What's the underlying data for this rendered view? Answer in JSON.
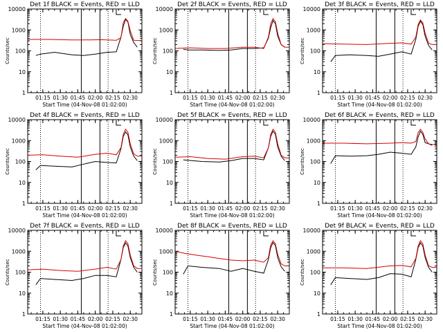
{
  "page": {
    "colors": {
      "background": "#ffffff",
      "events": "#000000",
      "lld": "#d40000",
      "axes": "#000000"
    }
  },
  "chart_data": [
    {
      "type": "line",
      "title": "Det 1f BLACK = Events, RED = LLD",
      "xlabel": "Start Time (04-Nov-08 01:02:00)",
      "ylabel": "Counts/sec",
      "x_ticks": [
        "01:15",
        "01:30",
        "01:45",
        "02:00",
        "02:15",
        "02:30"
      ],
      "y_ticks": [
        "1",
        "10",
        "100",
        "1000",
        "10000"
      ],
      "y_scale": "log",
      "ylim": [
        1,
        10000
      ],
      "xlim": [
        "01:02",
        "02:40"
      ],
      "series": [
        {
          "name": "Events",
          "color": "#000000",
          "x": [
            "01:09",
            "01:13",
            "01:25",
            "01:40",
            "01:50",
            "02:00",
            "02:10",
            "02:18",
            "02:22",
            "02:24",
            "02:26",
            "02:28",
            "02:30",
            "02:33",
            "02:36"
          ],
          "y": [
            60,
            70,
            85,
            65,
            60,
            70,
            85,
            90,
            450,
            1500,
            3200,
            2400,
            600,
            250,
            150
          ]
        },
        {
          "name": "LLD",
          "color": "#d40000",
          "x": [
            "01:02",
            "01:20",
            "01:40",
            "01:50",
            "02:05",
            "02:18",
            "02:22",
            "02:24",
            "02:26",
            "02:28",
            "02:30",
            "02:33",
            "02:36",
            "02:40"
          ],
          "y": [
            350,
            350,
            330,
            330,
            340,
            320,
            420,
            2200,
            3500,
            2600,
            900,
            320,
            310,
            310
          ]
        }
      ],
      "markers": {
        "dotted": [
          "01:13",
          "02:11"
        ],
        "solid": [
          "01:48",
          "02:04"
        ],
        "bracket": "02:18"
      }
    },
    {
      "type": "line",
      "title": "Det 2f BLACK = Events, RED = LLD",
      "xlabel": "Start Time (04-Nov-08 01:02:00)",
      "ylabel": "Counts/sec",
      "x_ticks": [
        "01:15",
        "01:30",
        "01:45",
        "02:00",
        "02:15",
        "02:30"
      ],
      "y_ticks": [
        "1",
        "10",
        "100",
        "1000",
        "10000"
      ],
      "y_scale": "log",
      "ylim": [
        1,
        10000
      ],
      "xlim": [
        "01:02",
        "02:40"
      ],
      "series": [
        {
          "name": "Events",
          "color": "#000000",
          "x": [
            "01:09",
            "01:13",
            "01:25",
            "01:40",
            "01:50",
            "02:00",
            "02:10",
            "02:18",
            "02:22",
            "02:24",
            "02:26",
            "02:28",
            "02:30",
            "02:33",
            "02:36"
          ],
          "y": [
            120,
            110,
            110,
            105,
            110,
            130,
            130,
            140,
            400,
            1300,
            2800,
            2000,
            500,
            200,
            150
          ]
        },
        {
          "name": "LLD",
          "color": "#d40000",
          "x": [
            "01:02",
            "01:15",
            "01:30",
            "01:45",
            "02:00",
            "02:10",
            "02:18",
            "02:22",
            "02:24",
            "02:26",
            "02:28",
            "02:30",
            "02:33",
            "02:36",
            "02:40"
          ],
          "y": [
            130,
            140,
            130,
            130,
            150,
            150,
            130,
            450,
            2000,
            3500,
            2500,
            700,
            200,
            150,
            150
          ]
        }
      ],
      "markers": {
        "dotted": [
          "01:13",
          "02:11"
        ],
        "solid": [
          "01:48",
          "02:04"
        ],
        "bracket": "02:18"
      }
    },
    {
      "type": "line",
      "title": "Det 3f BLACK = Events, RED = LLD",
      "xlabel": "Start Time (04-Nov-08 01:02:00)",
      "ylabel": "Counts/sec",
      "x_ticks": [
        "01:15",
        "01:30",
        "01:45",
        "02:00",
        "02:15",
        "02:30"
      ],
      "y_ticks": [
        "1",
        "10",
        "100",
        "1000",
        "10000"
      ],
      "y_scale": "log",
      "ylim": [
        1,
        10000
      ],
      "xlim": [
        "01:02",
        "02:40"
      ],
      "series": [
        {
          "name": "Events",
          "color": "#000000",
          "x": [
            "01:09",
            "01:13",
            "01:25",
            "01:40",
            "01:50",
            "02:00",
            "02:10",
            "02:18",
            "02:22",
            "02:24",
            "02:26",
            "02:28",
            "02:30",
            "02:33",
            "02:36"
          ],
          "y": [
            30,
            60,
            65,
            60,
            55,
            70,
            90,
            70,
            350,
            1500,
            2600,
            1800,
            500,
            180,
            110
          ]
        },
        {
          "name": "LLD",
          "color": "#d40000",
          "x": [
            "01:02",
            "01:20",
            "01:40",
            "02:00",
            "02:10",
            "02:18",
            "02:22",
            "02:24",
            "02:26",
            "02:28",
            "02:30",
            "02:33",
            "02:36",
            "02:40"
          ],
          "y": [
            220,
            210,
            200,
            230,
            240,
            210,
            450,
            1800,
            3000,
            2200,
            700,
            230,
            200,
            200
          ]
        }
      ],
      "markers": {
        "dotted": [
          "01:13",
          "02:11"
        ],
        "solid": [
          "01:48",
          "02:04"
        ],
        "bracket": "02:18"
      }
    },
    {
      "type": "line",
      "title": "Det 4f BLACK = Events, RED = LLD",
      "xlabel": "Start Time (04-Nov-08 01:02:00)",
      "ylabel": "Counts/sec",
      "x_ticks": [
        "01:15",
        "01:30",
        "01:45",
        "02:00",
        "02:15",
        "02:30"
      ],
      "y_ticks": [
        "1",
        "10",
        "100",
        "1000",
        "10000"
      ],
      "y_scale": "log",
      "ylim": [
        1,
        10000
      ],
      "xlim": [
        "01:02",
        "02:40"
      ],
      "series": [
        {
          "name": "Events",
          "color": "#000000",
          "x": [
            "01:09",
            "01:13",
            "01:25",
            "01:40",
            "01:50",
            "02:00",
            "02:10",
            "02:18",
            "02:22",
            "02:24",
            "02:26",
            "02:28",
            "02:30",
            "02:33",
            "02:36"
          ],
          "y": [
            40,
            65,
            60,
            55,
            75,
            100,
            90,
            85,
            400,
            1600,
            2600,
            1900,
            500,
            180,
            110
          ]
        },
        {
          "name": "LLD",
          "color": "#d40000",
          "x": [
            "01:02",
            "01:15",
            "01:30",
            "01:45",
            "02:00",
            "02:10",
            "02:18",
            "02:22",
            "02:24",
            "02:26",
            "02:28",
            "02:30",
            "02:33",
            "02:36",
            "02:40"
          ],
          "y": [
            200,
            210,
            180,
            160,
            220,
            250,
            210,
            450,
            2000,
            3500,
            2500,
            700,
            230,
            180,
            180
          ]
        }
      ],
      "markers": {
        "dotted": [
          "01:13",
          "02:11"
        ],
        "solid": [
          "01:48",
          "02:04"
        ],
        "bracket": "02:18"
      }
    },
    {
      "type": "line",
      "title": "Det 5f BLACK = Events, RED = LLD",
      "xlabel": "Start Time (04-Nov-08 01:02:00)",
      "ylabel": "Counts/sec",
      "x_ticks": [
        "01:15",
        "01:30",
        "01:45",
        "02:00",
        "02:15",
        "02:30"
      ],
      "y_ticks": [
        "1",
        "10",
        "100",
        "1000",
        "10000"
      ],
      "y_scale": "log",
      "ylim": [
        1,
        10000
      ],
      "xlim": [
        "01:02",
        "02:40"
      ],
      "series": [
        {
          "name": "Events",
          "color": "#000000",
          "x": [
            "01:09",
            "01:13",
            "01:25",
            "01:40",
            "01:50",
            "02:00",
            "02:10",
            "02:18",
            "02:22",
            "02:24",
            "02:26",
            "02:28",
            "02:30",
            "02:33",
            "02:36"
          ],
          "y": [
            120,
            115,
            100,
            95,
            110,
            140,
            140,
            120,
            450,
            1600,
            2800,
            2000,
            500,
            180,
            110
          ]
        },
        {
          "name": "LLD",
          "color": "#d40000",
          "x": [
            "01:02",
            "01:15",
            "01:30",
            "01:45",
            "02:00",
            "02:10",
            "02:18",
            "02:22",
            "02:24",
            "02:26",
            "02:28",
            "02:30",
            "02:33",
            "02:36",
            "02:40"
          ],
          "y": [
            160,
            170,
            140,
            130,
            170,
            180,
            150,
            450,
            2000,
            3500,
            2500,
            700,
            200,
            150,
            150
          ]
        }
      ],
      "markers": {
        "dotted": [
          "01:13",
          "02:11"
        ],
        "solid": [
          "01:48",
          "02:04"
        ],
        "bracket": "02:18"
      }
    },
    {
      "type": "line",
      "title": "Det 6f BLACK = Events, RED = LLD",
      "xlabel": "Start Time (04-Nov-08 01:02:00)",
      "ylabel": "Counts/sec",
      "x_ticks": [
        "01:15",
        "01:30",
        "01:45",
        "02:00",
        "02:15",
        "02:30"
      ],
      "y_ticks": [
        "1",
        "10",
        "100",
        "1000",
        "10000"
      ],
      "y_scale": "log",
      "ylim": [
        1,
        10000
      ],
      "xlim": [
        "01:02",
        "02:40"
      ],
      "series": [
        {
          "name": "Events",
          "color": "#000000",
          "x": [
            "01:09",
            "01:13",
            "01:25",
            "01:40",
            "01:50",
            "02:00",
            "02:10",
            "02:18",
            "02:22",
            "02:24",
            "02:26",
            "02:28",
            "02:30",
            "02:33",
            "02:36"
          ],
          "y": [
            80,
            190,
            180,
            190,
            220,
            280,
            250,
            220,
            500,
            1500,
            2800,
            2000,
            800,
            700,
            600
          ]
        },
        {
          "name": "LLD",
          "color": "#d40000",
          "x": [
            "01:02",
            "01:20",
            "01:40",
            "02:00",
            "02:10",
            "02:18",
            "02:22",
            "02:24",
            "02:26",
            "02:28",
            "02:30",
            "02:33",
            "02:36",
            "02:40"
          ],
          "y": [
            750,
            750,
            700,
            750,
            800,
            750,
            900,
            2400,
            3500,
            2500,
            1200,
            700,
            650,
            650
          ]
        }
      ],
      "markers": {
        "dotted": [
          "01:13",
          "02:11"
        ],
        "solid": [
          "01:48",
          "02:04"
        ],
        "bracket": "02:18"
      }
    },
    {
      "type": "line",
      "title": "Det 7f BLACK = Events, RED = LLD",
      "xlabel": "Start Time (04-Nov-08 01:02:00)",
      "ylabel": "Counts/sec",
      "x_ticks": [
        "01:15",
        "01:30",
        "01:45",
        "02:00",
        "02:15",
        "02:30"
      ],
      "y_ticks": [
        "1",
        "10",
        "100",
        "1000",
        "10000"
      ],
      "y_scale": "log",
      "ylim": [
        1,
        10000
      ],
      "xlim": [
        "01:02",
        "02:40"
      ],
      "series": [
        {
          "name": "Events",
          "color": "#000000",
          "x": [
            "01:09",
            "01:13",
            "01:25",
            "01:40",
            "01:50",
            "02:00",
            "02:10",
            "02:18",
            "02:22",
            "02:24",
            "02:26",
            "02:28",
            "02:30",
            "02:33",
            "02:36"
          ],
          "y": [
            25,
            50,
            45,
            40,
            50,
            70,
            70,
            60,
            400,
            1500,
            2500,
            1800,
            500,
            170,
            100
          ]
        },
        {
          "name": "LLD",
          "color": "#d40000",
          "x": [
            "01:02",
            "01:15",
            "01:30",
            "01:45",
            "02:00",
            "02:10",
            "02:18",
            "02:22",
            "02:24",
            "02:26",
            "02:28",
            "02:30",
            "02:33",
            "02:36",
            "02:40"
          ],
          "y": [
            130,
            140,
            120,
            110,
            140,
            170,
            140,
            400,
            1800,
            3200,
            2300,
            650,
            200,
            150,
            150
          ]
        }
      ],
      "markers": {
        "dotted": [
          "01:13",
          "02:11"
        ],
        "solid": [
          "01:48",
          "02:04"
        ],
        "bracket": "02:18"
      }
    },
    {
      "type": "line",
      "title": "Det 8f BLACK = Events, RED = LLD",
      "xlabel": "Start Time (04-Nov-08 01:02:00)",
      "ylabel": "Counts/sec",
      "x_ticks": [
        "01:15",
        "01:30",
        "01:45",
        "02:00",
        "02:15",
        "02:30"
      ],
      "y_ticks": [
        "1",
        "10",
        "100",
        "1000",
        "10000"
      ],
      "y_scale": "log",
      "ylim": [
        1,
        10000
      ],
      "xlim": [
        "01:02",
        "02:40"
      ],
      "series": [
        {
          "name": "Events",
          "color": "#000000",
          "x": [
            "01:09",
            "01:13",
            "01:25",
            "01:40",
            "01:50",
            "02:00",
            "02:10",
            "02:18",
            "02:22",
            "02:24",
            "02:26",
            "02:28",
            "02:30",
            "02:33",
            "02:36"
          ],
          "y": [
            80,
            200,
            170,
            150,
            110,
            150,
            110,
            90,
            400,
            1500,
            2600,
            1900,
            500,
            180,
            110
          ]
        },
        {
          "name": "LLD",
          "color": "#d40000",
          "x": [
            "01:02",
            "01:10",
            "01:20",
            "01:30",
            "01:40",
            "01:50",
            "02:00",
            "02:10",
            "02:18",
            "02:22",
            "02:24",
            "02:26",
            "02:28",
            "02:30",
            "02:33",
            "02:36",
            "02:40"
          ],
          "y": [
            1000,
            800,
            650,
            550,
            450,
            380,
            350,
            380,
            300,
            500,
            2000,
            3200,
            2300,
            700,
            250,
            200,
            200
          ]
        }
      ],
      "markers": {
        "dotted": [
          "01:13",
          "02:11"
        ],
        "solid": [
          "01:48",
          "02:04"
        ],
        "bracket": "02:18"
      }
    },
    {
      "type": "line",
      "title": "Det 9f BLACK = Events, RED = LLD",
      "xlabel": "Start Time (04-Nov-08 01:02:00)",
      "ylabel": "Counts/sec",
      "x_ticks": [
        "01:15",
        "01:30",
        "01:45",
        "02:00",
        "02:15",
        "02:30"
      ],
      "y_ticks": [
        "1",
        "10",
        "100",
        "1000",
        "10000"
      ],
      "y_scale": "log",
      "ylim": [
        1,
        10000
      ],
      "xlim": [
        "01:02",
        "02:40"
      ],
      "series": [
        {
          "name": "Events",
          "color": "#000000",
          "x": [
            "01:09",
            "01:13",
            "01:25",
            "01:40",
            "01:50",
            "02:00",
            "02:10",
            "02:18",
            "02:22",
            "02:24",
            "02:26",
            "02:28",
            "02:30",
            "02:33",
            "02:36"
          ],
          "y": [
            25,
            55,
            50,
            45,
            55,
            85,
            80,
            60,
            400,
            1500,
            2500,
            1800,
            500,
            170,
            100
          ]
        },
        {
          "name": "LLD",
          "color": "#d40000",
          "x": [
            "01:02",
            "01:20",
            "01:40",
            "02:00",
            "02:10",
            "02:18",
            "02:22",
            "02:24",
            "02:26",
            "02:28",
            "02:30",
            "02:33",
            "02:36",
            "02:40"
          ],
          "y": [
            160,
            160,
            150,
            200,
            210,
            180,
            450,
            1800,
            3200,
            2300,
            650,
            200,
            170,
            170
          ]
        }
      ],
      "markers": {
        "dotted": [
          "01:13",
          "02:11"
        ],
        "solid": [
          "01:48",
          "02:04"
        ],
        "bracket": "02:18"
      }
    }
  ]
}
